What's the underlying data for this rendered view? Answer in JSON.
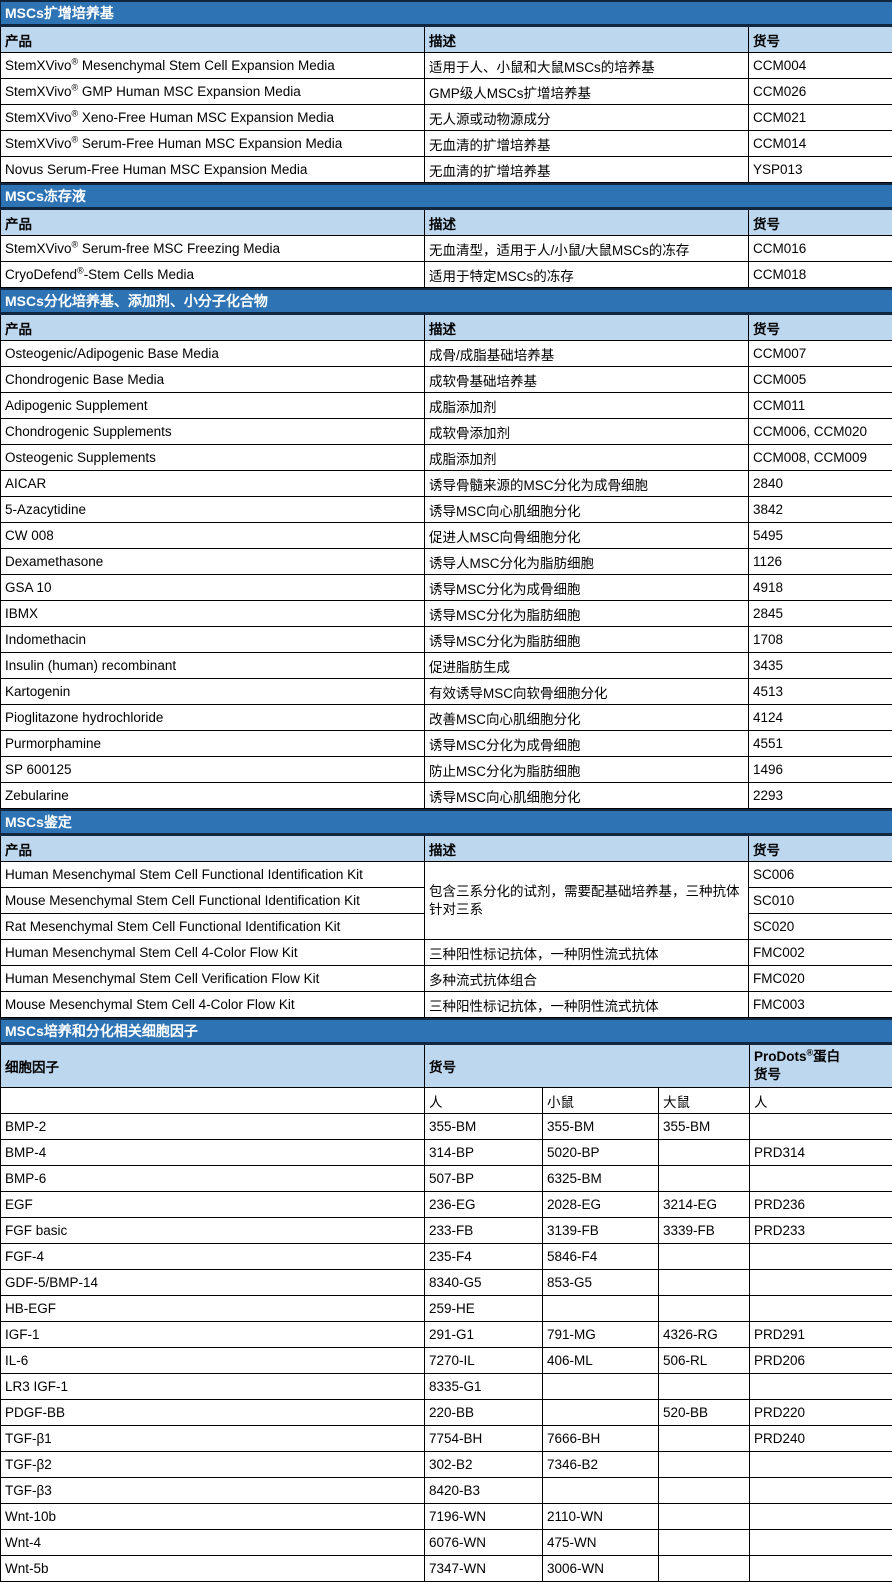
{
  "colors": {
    "section_header_bg": "#2E74B5",
    "section_header_text": "#FFFFFF",
    "column_header_bg": "#BDD7EE",
    "grid_line": "#000000",
    "heavy_border": "#10273F",
    "body_bg": "#FFFFFF"
  },
  "sections": [
    {
      "title": "MSCs扩增培养基",
      "headers": [
        "产品",
        "描述",
        "货号"
      ],
      "rows": [
        [
          "StemXVivo® Mesenchymal Stem Cell Expansion Media",
          "适用于人、小鼠和大鼠MSCs的培养基",
          "CCM004"
        ],
        [
          "StemXVivo® GMP Human MSC Expansion Media",
          "GMP级人MSCs扩增培养基",
          "CCM026"
        ],
        [
          "StemXVivo® Xeno-Free Human MSC Expansion Media",
          "无人源或动物源成分",
          "CCM021"
        ],
        [
          "StemXVivo® Serum-Free Human MSC Expansion Media",
          "无血清的扩增培养基",
          "CCM014"
        ],
        [
          "Novus Serum-Free Human MSC Expansion Media",
          "无血清的扩增培养基",
          "YSP013"
        ]
      ]
    },
    {
      "title": "MSCs冻存液",
      "headers": [
        "产品",
        "描述",
        "货号"
      ],
      "rows": [
        [
          "StemXVivo® Serum-free MSC Freezing Media",
          "无血清型，适用于人/小鼠/大鼠MSCs的冻存",
          "CCM016"
        ],
        [
          "CryoDefend®-Stem Cells Media",
          "适用于特定MSCs的冻存",
          "CCM018"
        ]
      ]
    },
    {
      "title": "MSCs分化培养基、添加剂、小分子化合物",
      "headers": [
        "产品",
        "描述",
        "货号"
      ],
      "rows": [
        [
          "Osteogenic/Adipogenic Base Media",
          "成骨/成脂基础培养基",
          "CCM007"
        ],
        [
          "Chondrogenic Base Media",
          "成软骨基础培养基",
          "CCM005"
        ],
        [
          "Adipogenic Supplement",
          "成脂添加剂",
          "CCM011"
        ],
        [
          "Chondrogenic Supplements",
          "成软骨添加剂",
          "CCM006, CCM020"
        ],
        [
          "Osteogenic Supplements",
          "成脂添加剂",
          "CCM008, CCM009"
        ],
        [
          "AICAR",
          "诱导骨髓来源的MSC分化为成骨细胞",
          "2840"
        ],
        [
          "5-Azacytidine",
          "诱导MSC向心肌细胞分化",
          "3842"
        ],
        [
          "CW 008",
          "促进人MSC向骨细胞分化",
          "5495"
        ],
        [
          "Dexamethasone",
          "诱导人MSC分化为脂肪细胞",
          "1126"
        ],
        [
          "GSA 10",
          "诱导MSC分化为成骨细胞",
          "4918"
        ],
        [
          "IBMX",
          "诱导MSC分化为脂肪细胞",
          "2845"
        ],
        [
          "Indomethacin",
          "诱导MSC分化为脂肪细胞",
          "1708"
        ],
        [
          "Insulin (human) recombinant",
          "促进脂肪生成",
          "3435"
        ],
        [
          "Kartogenin",
          "有效诱导MSC向软骨细胞分化",
          "4513"
        ],
        [
          "Pioglitazone hydrochloride",
          "改善MSC向心肌细胞分化",
          "4124"
        ],
        [
          "Purmorphamine",
          "诱导MSC分化为成骨细胞",
          "4551"
        ],
        [
          "SP 600125",
          "防止MSC分化为脂肪细胞",
          "1496"
        ],
        [
          "Zebularine",
          "诱导MSC向心肌细胞分化",
          "2293"
        ]
      ]
    },
    {
      "title": "MSCs鉴定",
      "headers": [
        "产品",
        "描述",
        "货号"
      ],
      "merged_description": "包含三系分化的试剂，需要配基础培养基，三种抗体针对三系",
      "rows": [
        [
          "Human Mesenchymal Stem Cell Functional Identification Kit",
          "SC006"
        ],
        [
          "Mouse Mesenchymal Stem Cell Functional Identification Kit",
          "SC010"
        ],
        [
          "Rat Mesenchymal Stem Cell Functional Identification Kit",
          "SC020"
        ],
        [
          "Human Mesenchymal Stem Cell 4-Color Flow Kit",
          "三种阳性标记抗体，一种阴性流式抗体",
          "FMC002"
        ],
        [
          "Human Mesenchymal Stem Cell Verification Flow Kit",
          "多种流式抗体组合",
          "FMC020"
        ],
        [
          "Mouse Mesenchymal Stem Cell 4-Color Flow Kit",
          "三种阳性标记抗体，一种阴性流式抗体",
          "FMC003"
        ]
      ]
    },
    {
      "title": "MSCs培养和分化相关细胞因子",
      "header": {
        "cytokine": "细胞因子",
        "catalog": "货号",
        "prodots": "ProDots®蛋白\n货号"
      },
      "subheaders": [
        "人",
        "小鼠",
        "大鼠",
        "人"
      ],
      "rows": [
        [
          "BMP-2",
          "355-BM",
          "355-BM",
          "355-BM",
          ""
        ],
        [
          "BMP-4",
          "314-BP",
          "5020-BP",
          "",
          "PRD314"
        ],
        [
          "BMP-6",
          "507-BP",
          "6325-BM",
          "",
          ""
        ],
        [
          "EGF",
          "236-EG",
          "2028-EG",
          "3214-EG",
          "PRD236"
        ],
        [
          "FGF basic",
          "233-FB",
          "3139-FB",
          "3339-FB",
          "PRD233"
        ],
        [
          "FGF-4",
          "235-F4",
          "5846-F4",
          "",
          ""
        ],
        [
          "GDF-5/BMP-14",
          "8340-G5",
          "853-G5",
          "",
          ""
        ],
        [
          "HB-EGF",
          "259-HE",
          "",
          "",
          ""
        ],
        [
          "IGF-1",
          "291-G1",
          "791-MG",
          "4326-RG",
          "PRD291"
        ],
        [
          "IL-6",
          "7270-IL",
          "406-ML",
          "506-RL",
          "PRD206"
        ],
        [
          "LR3 IGF-1",
          "8335-G1",
          "",
          "",
          ""
        ],
        [
          "PDGF-BB",
          "220-BB",
          "",
          "520-BB",
          "PRD220"
        ],
        [
          "TGF-β1",
          "7754-BH",
          "7666-BH",
          "",
          "PRD240"
        ],
        [
          "TGF-β2",
          "302-B2",
          "7346-B2",
          "",
          ""
        ],
        [
          "TGF-β3",
          "8420-B3",
          "",
          "",
          ""
        ],
        [
          "Wnt-10b",
          "7196-WN",
          "2110-WN",
          "",
          ""
        ],
        [
          "Wnt-4",
          "6076-WN",
          "475-WN",
          "",
          ""
        ],
        [
          "Wnt-5b",
          "7347-WN",
          "3006-WN",
          "",
          ""
        ]
      ]
    }
  ]
}
